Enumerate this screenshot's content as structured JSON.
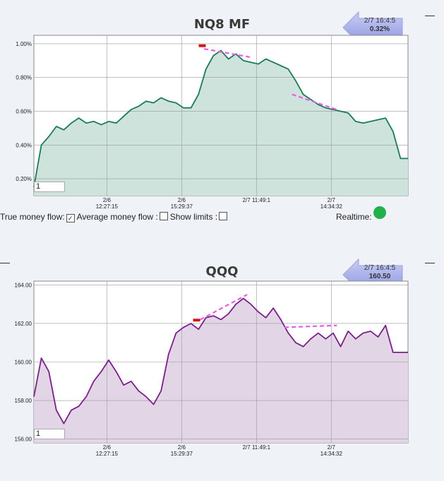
{
  "charts": [
    {
      "title": "NQ8 MF",
      "badge": {
        "time": "2/7 16:4:5",
        "value": "0.32%"
      },
      "input_value": "1",
      "x_ticks": [
        {
          "line1": "2/6",
          "line2": "12:27:15"
        },
        {
          "line1": "2/6",
          "line2": "15:29:37"
        },
        {
          "line1": "2/7 11:49:1",
          "line2": ""
        },
        {
          "line1": "2/7",
          "line2": "14:34:32"
        }
      ],
      "y_ticks": [
        "1.00%",
        "0.80%",
        "0.60%",
        "0.40%",
        "0.20%"
      ]
    },
    {
      "title": "QQQ",
      "badge": {
        "time": "2/7 16:4:5",
        "value": "160.50"
      },
      "input_value": "1",
      "x_ticks": [
        {
          "line1": "2/6",
          "line2": "12:27:15"
        },
        {
          "line1": "2/6",
          "line2": "15:29:37"
        },
        {
          "line1": "2/7 11:49:1",
          "line2": ""
        },
        {
          "line1": "2/7",
          "line2": "14:34:32"
        }
      ],
      "y_ticks": [
        "164.00",
        "162.00",
        "160.00",
        "158.00",
        "156.00"
      ]
    }
  ],
  "controls": {
    "true_money_flow_label": "True money flow:",
    "true_money_flow_checked": true,
    "average_money_flow_label": "Average money flow :",
    "average_money_flow_checked": false,
    "show_limits_label": "Show limits :",
    "show_limits_checked": false,
    "realtime_label": "Realtime:",
    "realtime_status_color": "#21b04b"
  },
  "chart_data": [
    {
      "type": "area",
      "title": "NQ8 MF",
      "ylim": [
        0.1,
        1.05
      ],
      "y_unit": "%",
      "color": "#1a7a5a",
      "fill": "#cfe3dd",
      "x": [
        0,
        2,
        4,
        6,
        8,
        10,
        12,
        14,
        16,
        18,
        20,
        22,
        24,
        26,
        28,
        30,
        32,
        34,
        36,
        38,
        40,
        42,
        44,
        46,
        48,
        50,
        52,
        54,
        56,
        58,
        60,
        62,
        64,
        66,
        68,
        70,
        72,
        74,
        76,
        78,
        80,
        82,
        84,
        86,
        88,
        90,
        92,
        94,
        96,
        98,
        100
      ],
      "values": [
        0.15,
        0.4,
        0.45,
        0.51,
        0.49,
        0.53,
        0.56,
        0.53,
        0.54,
        0.52,
        0.54,
        0.53,
        0.57,
        0.61,
        0.63,
        0.66,
        0.65,
        0.68,
        0.66,
        0.65,
        0.62,
        0.62,
        0.7,
        0.85,
        0.93,
        0.96,
        0.91,
        0.94,
        0.9,
        0.89,
        0.88,
        0.91,
        0.89,
        0.87,
        0.85,
        0.78,
        0.7,
        0.67,
        0.64,
        0.62,
        0.61,
        0.6,
        0.59,
        0.54,
        0.53,
        0.54,
        0.55,
        0.56,
        0.48,
        0.32,
        0.32
      ],
      "x_tick_positions": [
        19.5,
        39.5,
        59.5,
        79.5
      ],
      "trendlines": [
        {
          "x": [
            45.5,
            58
          ],
          "y": [
            0.97,
            0.92
          ]
        },
        {
          "x": [
            69,
            81
          ],
          "y": [
            0.7,
            0.61
          ]
        }
      ],
      "marker": {
        "x": 45,
        "y": 0.98
      }
    },
    {
      "type": "line",
      "title": "QQQ",
      "ylim": [
        155.8,
        164.2
      ],
      "color": "#7b1f8a",
      "fill": "#e2d6e6",
      "x": [
        0,
        2,
        4,
        6,
        8,
        10,
        12,
        14,
        16,
        18,
        20,
        22,
        24,
        26,
        28,
        30,
        32,
        34,
        36,
        38,
        40,
        42,
        44,
        46,
        48,
        50,
        52,
        54,
        56,
        58,
        60,
        62,
        64,
        66,
        68,
        70,
        72,
        74,
        76,
        78,
        80,
        82,
        84,
        86,
        88,
        90,
        92,
        94,
        96,
        98,
        100
      ],
      "values": [
        158.2,
        160.2,
        159.5,
        157.5,
        156.8,
        157.5,
        157.7,
        158.2,
        159.0,
        159.5,
        160.1,
        159.5,
        158.8,
        159.0,
        158.5,
        158.2,
        157.8,
        158.5,
        160.4,
        161.5,
        161.8,
        162.0,
        161.7,
        162.3,
        162.4,
        162.2,
        162.5,
        163.0,
        163.3,
        163.0,
        162.6,
        162.3,
        162.8,
        162.2,
        161.5,
        161.0,
        160.8,
        161.2,
        161.5,
        161.2,
        161.5,
        160.8,
        161.6,
        161.2,
        161.5,
        161.6,
        161.3,
        161.9,
        160.5,
        160.5,
        160.5
      ],
      "x_tick_positions": [
        19.5,
        39.5,
        59.5,
        79.5
      ],
      "trendlines": [
        {
          "x": [
            44.5,
            57
          ],
          "y": [
            162.2,
            163.5
          ]
        },
        {
          "x": [
            67,
            81
          ],
          "y": [
            161.8,
            161.9
          ]
        }
      ],
      "marker": {
        "x": 43.5,
        "y": 162.1
      }
    }
  ]
}
